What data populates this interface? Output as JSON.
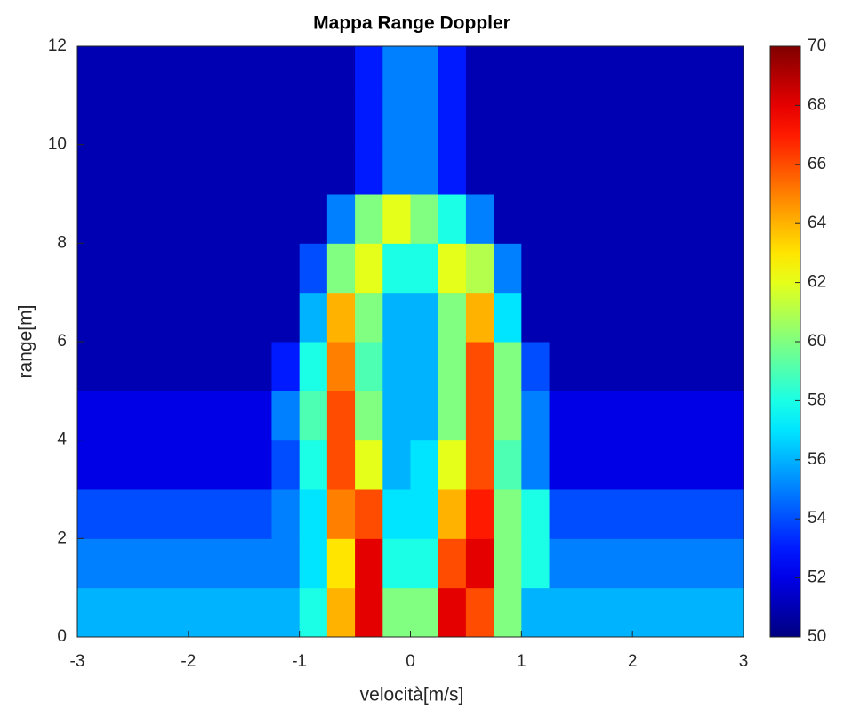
{
  "chart_data": {
    "type": "heatmap",
    "title": "Mappa Range Doppler",
    "x_label": "velocità[m/s]",
    "y_label": "range[m]",
    "xbins": [
      -3,
      -2.75,
      -2.5,
      -2.25,
      -2,
      -1.75,
      -1.5,
      -1.25,
      -1,
      -0.75,
      -0.5,
      -0.25,
      0,
      0.25,
      0.5,
      0.75,
      1,
      1.25,
      1.5,
      1.75,
      2,
      2.25,
      2.5,
      2.75,
      3
    ],
    "ybins": [
      0,
      1,
      2,
      3,
      4,
      5,
      6,
      7,
      8,
      9,
      10,
      11,
      12
    ],
    "z": [
      [
        56,
        56,
        56,
        56,
        56,
        56,
        56,
        56,
        58,
        64,
        68,
        60,
        60,
        68,
        66,
        60,
        56,
        56,
        56,
        56,
        56,
        56,
        56,
        56
      ],
      [
        55,
        55,
        55,
        55,
        55,
        55,
        55,
        55,
        57,
        63,
        68,
        58,
        58,
        66,
        68,
        60,
        58,
        55,
        55,
        55,
        55,
        55,
        55,
        55
      ],
      [
        54,
        54,
        54,
        54,
        54,
        54,
        54,
        55,
        57,
        65,
        66,
        57,
        57,
        64,
        67,
        60,
        58,
        54,
        54,
        54,
        54,
        54,
        54,
        54
      ],
      [
        52,
        52,
        52,
        52,
        52,
        52,
        52,
        54,
        58,
        66,
        62,
        56,
        57,
        62,
        66,
        59,
        55,
        52,
        52,
        52,
        52,
        52,
        52,
        52
      ],
      [
        52,
        52,
        52,
        52,
        52,
        52,
        52,
        55,
        59,
        66,
        60,
        56,
        56,
        60,
        66,
        60,
        55,
        52,
        52,
        52,
        52,
        52,
        52,
        52
      ],
      [
        51,
        51,
        51,
        51,
        51,
        51,
        51,
        53,
        58,
        65,
        59,
        56,
        56,
        60,
        66,
        60,
        54,
        51,
        51,
        51,
        51,
        51,
        51,
        51
      ],
      [
        51,
        51,
        51,
        51,
        51,
        51,
        51,
        51,
        56,
        64,
        60,
        56,
        56,
        60,
        64,
        57,
        51,
        51,
        51,
        51,
        51,
        51,
        51,
        51
      ],
      [
        51,
        51,
        51,
        51,
        51,
        51,
        51,
        51,
        54,
        60,
        62,
        58,
        58,
        62,
        61,
        55,
        51,
        51,
        51,
        51,
        51,
        51,
        51,
        51
      ],
      [
        51,
        51,
        51,
        51,
        51,
        51,
        51,
        51,
        51,
        55,
        60,
        62,
        60,
        58,
        55,
        51,
        51,
        51,
        51,
        51,
        51,
        51,
        51,
        51
      ],
      [
        51,
        51,
        51,
        51,
        51,
        51,
        51,
        51,
        51,
        51,
        53,
        55,
        55,
        53,
        51,
        51,
        51,
        51,
        51,
        51,
        51,
        51,
        51,
        51
      ],
      [
        51,
        51,
        51,
        51,
        51,
        51,
        51,
        51,
        51,
        51,
        53,
        55,
        55,
        53,
        51,
        51,
        51,
        51,
        51,
        51,
        51,
        51,
        51,
        51
      ],
      [
        51,
        51,
        51,
        51,
        51,
        51,
        51,
        51,
        51,
        51,
        53,
        55,
        55,
        53,
        51,
        51,
        51,
        51,
        51,
        51,
        51,
        51,
        51,
        51
      ]
    ],
    "xlim": [
      -3,
      3
    ],
    "xticks": [
      -3,
      -2,
      -1,
      0,
      1,
      2,
      3
    ],
    "ylim": [
      0,
      12
    ],
    "yticks": [
      0,
      2,
      4,
      6,
      8,
      10,
      12
    ],
    "clim": [
      50,
      70
    ],
    "cticks": [
      50,
      52,
      54,
      56,
      58,
      60,
      62,
      64,
      66,
      68,
      70
    ],
    "colormap": "jet"
  }
}
